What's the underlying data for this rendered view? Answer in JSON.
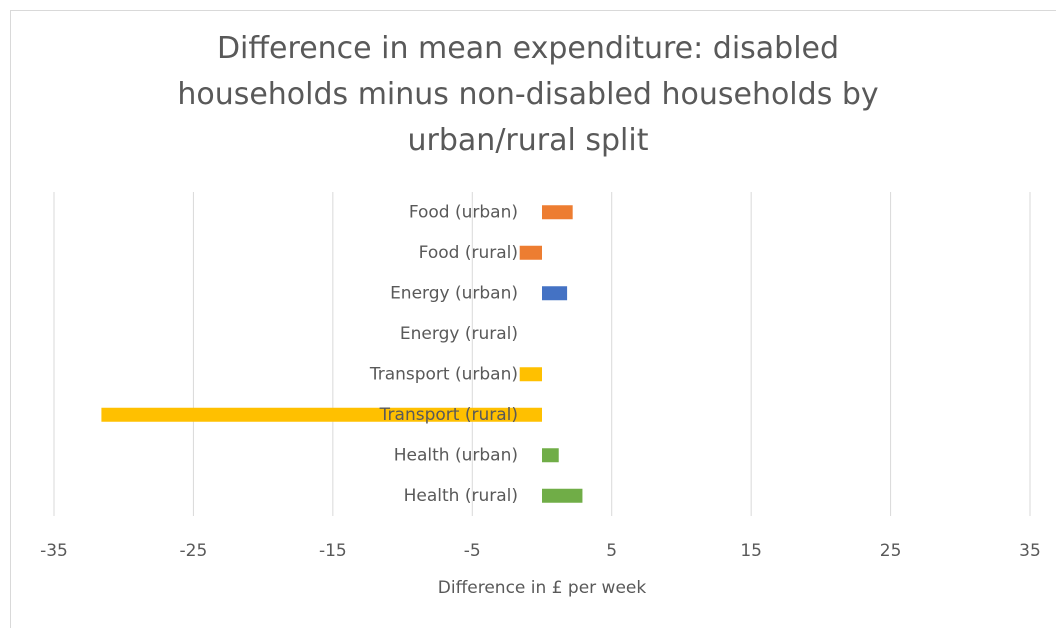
{
  "chart_data": {
    "type": "bar",
    "orientation": "horizontal",
    "title": "Difference in mean expenditure: disabled households minus non-disabled households by urban/rural split",
    "categories": [
      "Food (urban)",
      "Food (rural)",
      "Energy (urban)",
      "Energy (rural)",
      "Transport (urban)",
      "Transport (rural)",
      "Health (urban)",
      "Health (rural)"
    ],
    "values": [
      2.2,
      -1.6,
      1.8,
      0,
      -1.6,
      -31.6,
      1.2,
      2.9
    ],
    "colors": [
      "#ed7d31",
      "#ed7d31",
      "#4472c4",
      "#4472c4",
      "#ffc000",
      "#ffc000",
      "#70ad47",
      "#70ad47"
    ],
    "xlabel": "Difference in £ per week",
    "xlim": [
      -35,
      35
    ],
    "xticks": [
      -35,
      -25,
      -15,
      -5,
      5,
      15,
      25,
      35
    ],
    "grid": true
  }
}
